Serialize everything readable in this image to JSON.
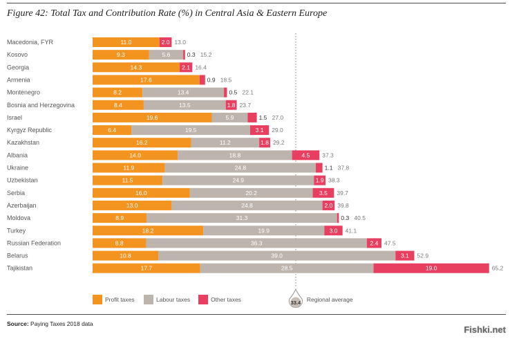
{
  "title": "Figure 42: Total Tax and Contribution Rate (%) in Central Asia & Eastern Europe",
  "source_label": "Source:",
  "source_text": "Paying Taxes 2018 data",
  "watermark": "Fishki.net",
  "regional_average_label": "Regional average",
  "regional_average_value_label": "33.4",
  "colors": {
    "profit": "#f39320",
    "labour": "#bdb4ad",
    "other": "#e83e5f",
    "label_text": "#ffffff",
    "total_text": "#7a7a7a",
    "country_text": "#555555",
    "average_marker": "#c8bfb8"
  },
  "chart_data": {
    "type": "bar",
    "orientation": "horizontal",
    "stacked": true,
    "title": "Figure 42: Total Tax and Contribution Rate (%) in Central Asia & Eastern Europe",
    "categories": [
      "Macedonia, FYR",
      "Kosovo",
      "Georgia",
      "Armenia",
      "Montenegro",
      "Bosnia and Herzegovina",
      "Israel",
      "Kyrgyz Republic",
      "Kazakhstan",
      "Albania",
      "Ukraine",
      "Uzbekistan",
      "Serbia",
      "Azerbaijan",
      "Moldova",
      "Turkey",
      "Russian Federation",
      "Belarus",
      "Tajikistan"
    ],
    "series": [
      {
        "name": "Profit taxes",
        "values": [
          11.0,
          9.3,
          14.3,
          17.6,
          8.2,
          8.4,
          19.6,
          6.4,
          16.2,
          14.0,
          11.9,
          11.5,
          16.0,
          13.0,
          8.9,
          18.2,
          8.8,
          10.8,
          17.7
        ]
      },
      {
        "name": "Labour taxes",
        "values": [
          null,
          5.6,
          null,
          null,
          13.4,
          13.5,
          5.9,
          19.5,
          11.2,
          18.8,
          24.8,
          24.9,
          20.2,
          24.8,
          31.3,
          19.9,
          36.3,
          39.0,
          28.5
        ]
      },
      {
        "name": "Other taxes",
        "values": [
          2.0,
          0.3,
          2.1,
          0.9,
          0.5,
          1.8,
          1.5,
          3.1,
          1.8,
          4.5,
          1.1,
          1.9,
          3.5,
          2.0,
          0.3,
          3.0,
          2.4,
          3.1,
          19.0
        ]
      }
    ],
    "totals": [
      13.0,
      15.2,
      16.4,
      18.5,
      22.1,
      23.7,
      27.0,
      29.0,
      29.2,
      37.3,
      37.8,
      38.3,
      39.7,
      39.8,
      40.5,
      41.1,
      47.5,
      52.9,
      65.2
    ],
    "regional_average": 33.4,
    "xlim": [
      0,
      65.2
    ],
    "grid": false,
    "legend_placement": "bottom"
  }
}
